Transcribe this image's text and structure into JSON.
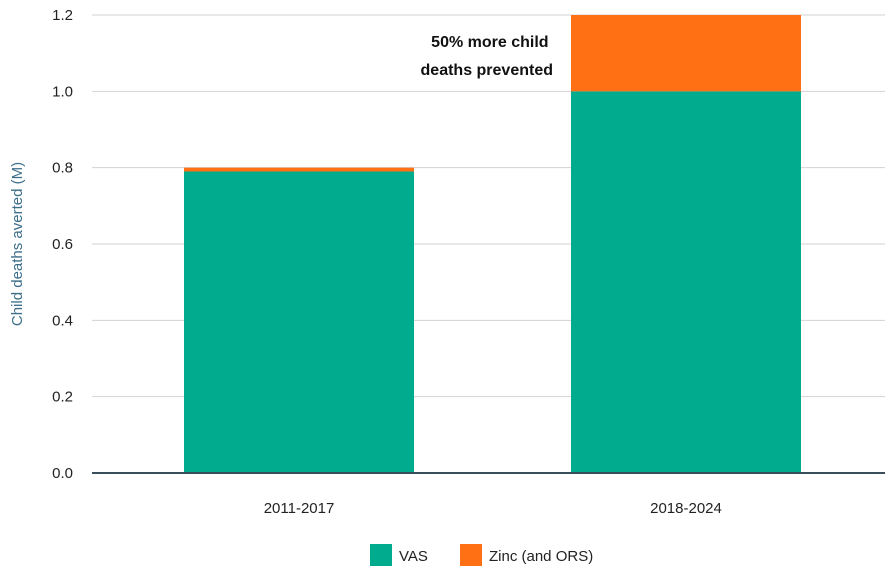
{
  "chart_data": {
    "type": "bar",
    "stacked": true,
    "categories": [
      "2011-2017",
      "2018-2024"
    ],
    "series": [
      {
        "name": "VAS",
        "values": [
          0.79,
          1.0
        ],
        "color": "#00ab8e"
      },
      {
        "name": "Zinc (and ORS)",
        "values": [
          0.01,
          0.2
        ],
        "color": "#ff7014"
      }
    ],
    "ylabel": "Child deaths averted (M)",
    "ylim": [
      0,
      1.2
    ],
    "yticks": [
      "0.0",
      "0.2",
      "0.4",
      "0.6",
      "0.8",
      "1.0",
      "1.2"
    ],
    "grid": true,
    "legend_position": "bottom-center",
    "annotation": {
      "lines": [
        "50% more child",
        "deaths prevented"
      ],
      "category": "2018-2024"
    }
  }
}
